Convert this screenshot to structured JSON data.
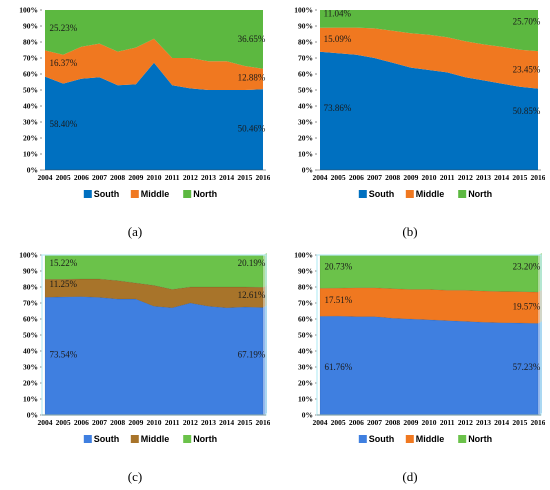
{
  "chart_data": [
    {
      "type": "area",
      "caption": "(a)",
      "stacked": true,
      "categories": [
        "2004",
        "2005",
        "2006",
        "2007",
        "2008",
        "2009",
        "2010",
        "2011",
        "2012",
        "2013",
        "2014",
        "2015",
        "2016"
      ],
      "yticks": [
        "0%",
        "10%",
        "20%",
        "30%",
        "40%",
        "50%",
        "60%",
        "70%",
        "80%",
        "90%",
        "100%"
      ],
      "ylim": [
        0,
        100
      ],
      "series": [
        {
          "name": "South",
          "color": "#0070C0",
          "values": [
            58.4,
            54,
            57,
            58,
            53,
            53.5,
            67,
            53,
            51,
            50,
            50,
            50,
            50.46
          ]
        },
        {
          "name": "Middle",
          "color": "#F07820",
          "values": [
            16.37,
            18,
            20,
            21,
            21,
            23,
            15,
            17,
            19,
            18,
            18,
            15,
            12.88
          ]
        },
        {
          "name": "North",
          "color": "#5CB840",
          "values": [
            25.23,
            28,
            23,
            21,
            26,
            23.5,
            18,
            30,
            30,
            32,
            32,
            35,
            36.65
          ]
        }
      ],
      "annotations": [
        {
          "text": "25.23%",
          "x": 0.25,
          "y": 87
        },
        {
          "text": "16.37%",
          "x": 0.25,
          "y": 65
        },
        {
          "text": "58.40%",
          "x": 0.25,
          "y": 27
        },
        {
          "text": "36.65%",
          "x": 10.6,
          "y": 80
        },
        {
          "text": "12.88%",
          "x": 10.6,
          "y": 56
        },
        {
          "text": "50.46%",
          "x": 10.6,
          "y": 24
        }
      ],
      "legend": [
        "South",
        "Middle",
        "North"
      ],
      "legend_position": "bottom",
      "style": "flat"
    },
    {
      "type": "area",
      "caption": "(b)",
      "stacked": true,
      "categories": [
        "2004",
        "2005",
        "2006",
        "2007",
        "2008",
        "2009",
        "2010",
        "2011",
        "2012",
        "2013",
        "2014",
        "2015",
        "2016"
      ],
      "yticks": [
        "0%",
        "10%",
        "20%",
        "30%",
        "40%",
        "50%",
        "60%",
        "70%",
        "80%",
        "90%",
        "100%"
      ],
      "ylim": [
        0,
        100
      ],
      "series": [
        {
          "name": "South",
          "color": "#0070C0",
          "values": [
            73.86,
            73,
            72,
            70,
            67,
            64,
            62.5,
            61,
            58,
            56,
            54,
            52,
            50.85
          ]
        },
        {
          "name": "Middle",
          "color": "#F07820",
          "values": [
            15.09,
            16,
            17,
            18.5,
            20,
            21.5,
            22,
            22,
            22.5,
            22.5,
            23,
            23.2,
            23.45
          ]
        },
        {
          "name": "North",
          "color": "#5CB840",
          "values": [
            11.04,
            11,
            11,
            11.5,
            13,
            14.5,
            15.5,
            17,
            19.5,
            21.5,
            23,
            24.8,
            25.7
          ]
        }
      ],
      "annotations": [
        {
          "text": "11.04%",
          "x": 0.2,
          "y": 96
        },
        {
          "text": "15.09%",
          "x": 0.2,
          "y": 80
        },
        {
          "text": "73.86%",
          "x": 0.2,
          "y": 37
        },
        {
          "text": "25.70%",
          "x": 10.6,
          "y": 91
        },
        {
          "text": "23.45%",
          "x": 10.6,
          "y": 61
        },
        {
          "text": "50.85%",
          "x": 10.6,
          "y": 35
        }
      ],
      "legend": [
        "South",
        "Middle",
        "North"
      ],
      "legend_position": "bottom",
      "style": "flat"
    },
    {
      "type": "area",
      "caption": "(c)",
      "stacked": true,
      "categories": [
        "2004",
        "2005",
        "2006",
        "2007",
        "2008",
        "2009",
        "2010",
        "2011",
        "2012",
        "2013",
        "2014",
        "2015",
        "2016"
      ],
      "yticks": [
        "0%",
        "10%",
        "20%",
        "30%",
        "40%",
        "50%",
        "60%",
        "70%",
        "80%",
        "90%",
        "100%"
      ],
      "ylim": [
        0,
        100
      ],
      "series": [
        {
          "name": "South",
          "color": "#3F7FE0",
          "values": [
            73.54,
            73.8,
            74,
            73.5,
            72.5,
            72.5,
            68,
            67,
            70,
            68,
            67,
            67.5,
            67.19
          ]
        },
        {
          "name": "Middle",
          "color": "#A8742A",
          "values": [
            11.25,
            11,
            11,
            11.5,
            11.5,
            10,
            13,
            11.5,
            10,
            12,
            13,
            12.5,
            12.61
          ]
        },
        {
          "name": "North",
          "color": "#6BC24A",
          "values": [
            15.22,
            15.2,
            15,
            15,
            16,
            17.5,
            19,
            21.5,
            20,
            20,
            20,
            20,
            20.19
          ]
        }
      ],
      "annotations": [
        {
          "text": "15.22%",
          "x": 0.25,
          "y": 93
        },
        {
          "text": "11.25%",
          "x": 0.25,
          "y": 80
        },
        {
          "text": "73.54%",
          "x": 0.25,
          "y": 36
        },
        {
          "text": "20.19%",
          "x": 10.6,
          "y": 93
        },
        {
          "text": "12.61%",
          "x": 10.6,
          "y": 73
        },
        {
          "text": "67.19%",
          "x": 10.6,
          "y": 36
        }
      ],
      "legend": [
        "South",
        "Middle",
        "North"
      ],
      "legend_position": "bottom",
      "style": "3d"
    },
    {
      "type": "area",
      "caption": "(d)",
      "stacked": true,
      "categories": [
        "2004",
        "2005",
        "2006",
        "2007",
        "2008",
        "2009",
        "2010",
        "2011",
        "2012",
        "2013",
        "2014",
        "2015",
        "2016"
      ],
      "yticks": [
        "0%",
        "10%",
        "20%",
        "30%",
        "40%",
        "50%",
        "60%",
        "70%",
        "80%",
        "90%",
        "100%"
      ],
      "ylim": [
        0,
        100
      ],
      "series": [
        {
          "name": "South",
          "color": "#3F7FE0",
          "values": [
            61.76,
            61.8,
            61.5,
            61.5,
            60.5,
            60,
            59.5,
            59,
            58.5,
            58,
            57.7,
            57.5,
            57.23
          ]
        },
        {
          "name": "Middle",
          "color": "#F07820",
          "values": [
            17.51,
            17.5,
            18,
            18,
            18.5,
            18.5,
            19,
            19,
            19.5,
            19.5,
            19.5,
            19.6,
            19.57
          ]
        },
        {
          "name": "North",
          "color": "#6BC24A",
          "values": [
            20.73,
            20.7,
            20.5,
            20.5,
            21,
            21.5,
            21.5,
            22,
            22,
            22.5,
            22.8,
            22.9,
            23.2
          ]
        }
      ],
      "annotations": [
        {
          "text": "20.73%",
          "x": 0.25,
          "y": 91
        },
        {
          "text": "17.51%",
          "x": 0.25,
          "y": 70
        },
        {
          "text": "61.76%",
          "x": 0.25,
          "y": 28
        },
        {
          "text": "23.20%",
          "x": 10.6,
          "y": 91
        },
        {
          "text": "19.57%",
          "x": 10.6,
          "y": 66
        },
        {
          "text": "57.23%",
          "x": 10.6,
          "y": 28
        }
      ],
      "legend": [
        "South",
        "Middle",
        "North"
      ],
      "legend_position": "bottom",
      "style": "3d"
    }
  ]
}
